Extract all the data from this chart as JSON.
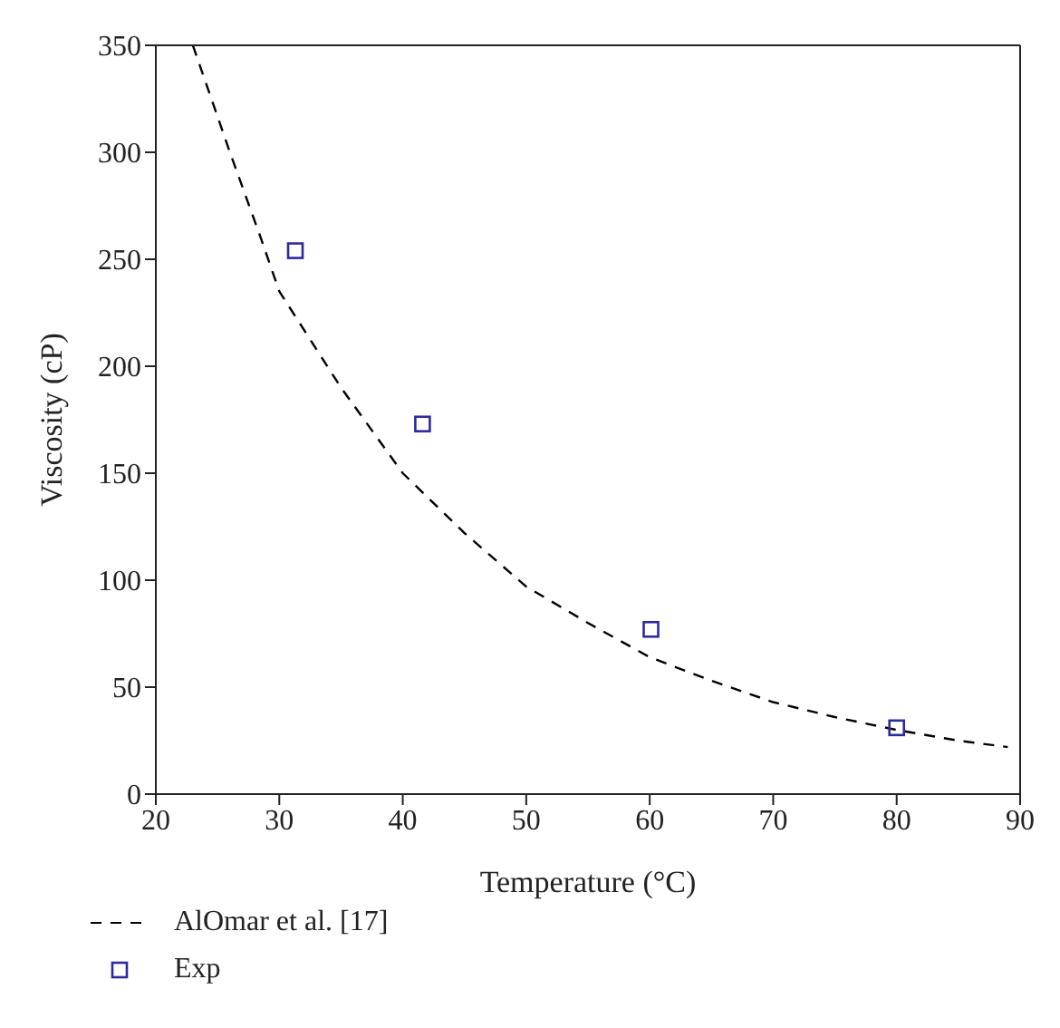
{
  "chart_data": {
    "type": "line",
    "xlabel": "Temperature (°C)",
    "ylabel": "Viscosity (cP)",
    "xlim": [
      20,
      90
    ],
    "xticks": [
      20,
      30,
      40,
      50,
      60,
      70,
      80,
      90
    ],
    "ylim": [
      0,
      350
    ],
    "yticks": [
      0,
      50,
      100,
      150,
      200,
      250,
      300,
      350
    ],
    "legend": "bottom",
    "series": [
      {
        "name": "AlOmar et al. [17]",
        "type": "line",
        "color": "#000000",
        "line_style": "dashed",
        "marker": "none",
        "x": [
          23,
          26,
          28.5,
          30,
          35,
          40,
          45,
          50,
          55,
          60,
          65,
          70,
          75,
          80,
          85,
          89
        ],
        "values": [
          350,
          300,
          260,
          235,
          190,
          150,
          122,
          97,
          80,
          64,
          53,
          43,
          36,
          30,
          25,
          22
        ]
      },
      {
        "name": "Exp",
        "type": "scatter",
        "color": "#2e2a9c",
        "marker": "square",
        "x": [
          31.3,
          41.6,
          60.1,
          80
        ],
        "values": [
          254,
          173,
          77,
          31
        ]
      }
    ]
  }
}
